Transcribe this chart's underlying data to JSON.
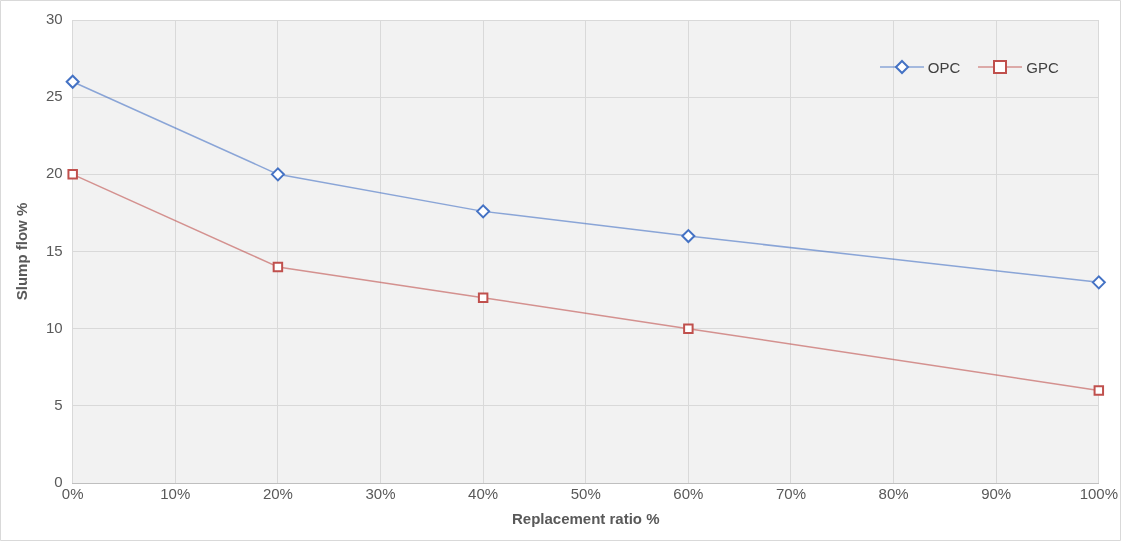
{
  "chart_data": {
    "type": "line",
    "xlabel": "Replacement ratio %",
    "ylabel": "Slump flow %",
    "x": [
      0,
      20,
      40,
      60,
      100
    ],
    "series": [
      {
        "name": "OPC",
        "color": "#4472c4",
        "marker": "diamond",
        "values": [
          26,
          20,
          17.6,
          16,
          13
        ]
      },
      {
        "name": "GPC",
        "color": "#c0504d",
        "marker": "square",
        "values": [
          20,
          14,
          12,
          10,
          6
        ]
      }
    ],
    "xlim": [
      0,
      100
    ],
    "xticks": [
      {
        "value": 0,
        "label": "0%"
      },
      {
        "value": 10,
        "label": "10%"
      },
      {
        "value": 20,
        "label": "20%"
      },
      {
        "value": 30,
        "label": "30%"
      },
      {
        "value": 40,
        "label": "40%"
      },
      {
        "value": 50,
        "label": "50%"
      },
      {
        "value": 60,
        "label": "60%"
      },
      {
        "value": 70,
        "label": "70%"
      },
      {
        "value": 80,
        "label": "80%"
      },
      {
        "value": 90,
        "label": "90%"
      },
      {
        "value": 100,
        "label": "100%"
      }
    ],
    "ylim": [
      0,
      30
    ],
    "yticks": [
      0,
      5,
      10,
      15,
      20,
      25,
      30
    ],
    "grid": true,
    "legend": "top right",
    "line_style": "solid"
  }
}
